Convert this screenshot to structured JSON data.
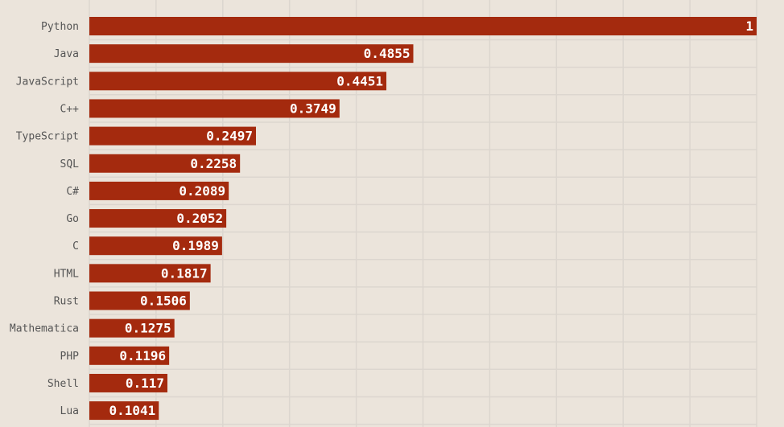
{
  "chart_data": {
    "type": "bar",
    "orientation": "horizontal",
    "categories": [
      "Python",
      "Java",
      "JavaScript",
      "C++",
      "TypeScript",
      "SQL",
      "C#",
      "Go",
      "C",
      "HTML",
      "Rust",
      "Mathematica",
      "PHP",
      "Shell",
      "Lua"
    ],
    "values": [
      1,
      0.4855,
      0.4451,
      0.3749,
      0.2497,
      0.2258,
      0.2089,
      0.2052,
      0.1989,
      0.1817,
      0.1506,
      0.1275,
      0.1196,
      0.117,
      0.1041
    ],
    "value_labels": [
      "1",
      "0.4855",
      "0.4451",
      "0.3749",
      "0.2497",
      "0.2258",
      "0.2089",
      "0.2052",
      "0.1989",
      "0.1817",
      "0.1506",
      "0.1275",
      "0.1196",
      "0.117",
      "0.1041"
    ],
    "xlim": [
      0,
      1
    ],
    "grid": true,
    "grid_step": 0.1,
    "bar_color": "#a42a0e",
    "background_color": "#ebe4db",
    "title": "",
    "xlabel": "",
    "ylabel": ""
  }
}
